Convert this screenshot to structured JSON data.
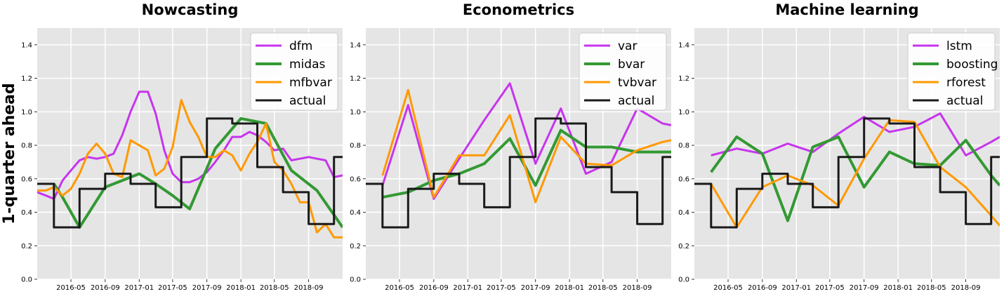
{
  "chart_data": [
    {
      "type": "line",
      "title": "Nowcasting",
      "ylabel": "1-quarter ahead",
      "xlabel": "",
      "ylim": [
        0.0,
        1.5
      ],
      "xlim": [
        "2016-01-01",
        "2019-01-01"
      ],
      "yticks": [
        "0.0",
        "0.2",
        "0.4",
        "0.6",
        "0.8",
        "1.0",
        "1.2",
        "1.4"
      ],
      "xticks": [
        "2016-05",
        "2016-09",
        "2017-01",
        "2017-05",
        "2017-09",
        "2018-01",
        "2018-05",
        "2018-09"
      ],
      "grid": true,
      "legend_position": "upper right",
      "series": [
        {
          "name": "dfm",
          "color": "#c734ee",
          "x": [
            "2016-01-01",
            "2016-02-01",
            "2016-03-01",
            "2016-04-01",
            "2016-05-01",
            "2016-06-01",
            "2016-07-01",
            "2016-08-01",
            "2016-09-01",
            "2016-10-01",
            "2016-11-01",
            "2016-12-01",
            "2017-01-01",
            "2017-02-01",
            "2017-03-01",
            "2017-04-01",
            "2017-05-01",
            "2017-06-01",
            "2017-07-01",
            "2017-08-01",
            "2017-09-01",
            "2017-10-01",
            "2017-11-01",
            "2017-12-01",
            "2018-01-01",
            "2018-02-01",
            "2018-03-01",
            "2018-04-01",
            "2018-05-01",
            "2018-06-01",
            "2018-07-01",
            "2018-08-01",
            "2018-09-01",
            "2018-10-01",
            "2018-11-01",
            "2018-12-01",
            "2019-01-01"
          ],
          "values": [
            0.52,
            0.5,
            0.48,
            0.59,
            0.65,
            0.71,
            0.73,
            0.72,
            0.73,
            0.75,
            0.86,
            1.0,
            1.12,
            1.12,
            0.99,
            0.77,
            0.63,
            0.58,
            0.58,
            0.6,
            0.64,
            0.7,
            0.77,
            0.85,
            0.85,
            0.88,
            0.86,
            0.82,
            0.77,
            0.78,
            0.71,
            0.72,
            0.73,
            0.72,
            0.71,
            0.61,
            0.62
          ]
        },
        {
          "name": "midas",
          "color": "#339933",
          "x": [
            "2016-03-01",
            "2016-04-01",
            "2016-06-01",
            "2016-09-01",
            "2016-11-01",
            "2017-01-01",
            "2017-03-01",
            "2017-05-01",
            "2017-07-01",
            "2017-10-01",
            "2018-01-01",
            "2018-04-01",
            "2018-07-01",
            "2018-10-01",
            "2019-01-01"
          ],
          "values": [
            0.57,
            0.49,
            0.31,
            0.55,
            0.59,
            0.63,
            0.57,
            0.5,
            0.42,
            0.78,
            0.96,
            0.93,
            0.65,
            0.53,
            0.31
          ]
        },
        {
          "name": "mfbvar",
          "color": "#ff9900",
          "x": [
            "2016-01-01",
            "2016-02-01",
            "2016-03-01",
            "2016-04-01",
            "2016-05-01",
            "2016-06-01",
            "2016-07-01",
            "2016-08-01",
            "2016-09-01",
            "2016-10-01",
            "2016-11-01",
            "2016-12-01",
            "2017-01-01",
            "2017-02-01",
            "2017-03-01",
            "2017-04-01",
            "2017-05-01",
            "2017-06-01",
            "2017-07-01",
            "2017-08-01",
            "2017-09-01",
            "2017-10-01",
            "2017-11-01",
            "2017-12-01",
            "2018-01-01",
            "2018-02-01",
            "2018-03-01",
            "2018-04-01",
            "2018-05-01",
            "2018-06-01",
            "2018-07-01",
            "2018-08-01",
            "2018-09-01",
            "2018-10-01",
            "2018-11-01",
            "2018-12-01",
            "2019-01-01"
          ],
          "values": [
            0.53,
            0.53,
            0.55,
            0.5,
            0.54,
            0.63,
            0.75,
            0.81,
            0.75,
            0.63,
            0.61,
            0.83,
            0.8,
            0.77,
            0.62,
            0.66,
            0.79,
            1.07,
            0.94,
            0.85,
            0.73,
            0.73,
            0.77,
            0.74,
            0.65,
            0.75,
            0.82,
            0.93,
            0.7,
            0.65,
            0.57,
            0.46,
            0.46,
            0.28,
            0.33,
            0.25,
            0.25
          ]
        },
        {
          "name": "actual",
          "color": "#1a1a1a",
          "x": [
            "2016-01-01",
            "2016-03-01",
            "2016-03-01",
            "2016-06-01",
            "2016-06-01",
            "2016-09-01",
            "2016-09-01",
            "2016-12-01",
            "2016-12-01",
            "2017-03-01",
            "2017-03-01",
            "2017-06-01",
            "2017-06-01",
            "2017-09-01",
            "2017-09-01",
            "2017-12-01",
            "2017-12-01",
            "2018-03-01",
            "2018-03-01",
            "2018-06-01",
            "2018-06-01",
            "2018-09-01",
            "2018-09-01",
            "2018-12-01",
            "2018-12-01",
            "2019-01-01"
          ],
          "values": [
            0.57,
            0.57,
            0.31,
            0.31,
            0.54,
            0.54,
            0.63,
            0.63,
            0.57,
            0.57,
            0.43,
            0.43,
            0.73,
            0.73,
            0.96,
            0.96,
            0.93,
            0.93,
            0.67,
            0.67,
            0.52,
            0.52,
            0.33,
            0.33,
            0.73,
            0.73
          ]
        }
      ]
    },
    {
      "type": "line",
      "title": "Econometrics",
      "ylabel": "",
      "xlabel": "",
      "ylim": [
        0.0,
        1.5
      ],
      "xlim": [
        "2016-01-01",
        "2019-01-01"
      ],
      "yticks": [
        "0.0",
        "0.2",
        "0.4",
        "0.6",
        "0.8",
        "1.0",
        "1.2",
        "1.4"
      ],
      "xticks": [
        "2016-05",
        "2016-09",
        "2017-01",
        "2017-05",
        "2017-09",
        "2018-01",
        "2018-05",
        "2018-09"
      ],
      "grid": true,
      "legend_position": "upper right",
      "series": [
        {
          "name": "var",
          "color": "#c734ee",
          "x": [
            "2016-03-01",
            "2016-06-01",
            "2016-09-01",
            "2016-12-01",
            "2017-03-01",
            "2017-06-01",
            "2017-09-01",
            "2017-12-01",
            "2018-03-01",
            "2018-06-01",
            "2018-09-01",
            "2018-12-01",
            "2019-01-01"
          ],
          "values": [
            0.56,
            1.04,
            0.48,
            0.72,
            0.95,
            1.17,
            0.69,
            1.02,
            0.63,
            0.7,
            1.02,
            0.93,
            0.92
          ]
        },
        {
          "name": "bvar",
          "color": "#339933",
          "x": [
            "2016-03-01",
            "2016-06-01",
            "2016-09-01",
            "2016-12-01",
            "2017-03-01",
            "2017-06-01",
            "2017-09-01",
            "2017-12-01",
            "2018-03-01",
            "2018-06-01",
            "2018-09-01",
            "2018-12-01",
            "2019-01-01"
          ],
          "values": [
            0.49,
            0.52,
            0.59,
            0.63,
            0.69,
            0.84,
            0.56,
            0.89,
            0.79,
            0.79,
            0.76,
            0.76,
            0.76
          ]
        },
        {
          "name": "tvbvar",
          "color": "#ff9900",
          "x": [
            "2016-03-01",
            "2016-06-01",
            "2016-09-01",
            "2016-12-01",
            "2017-03-01",
            "2017-06-01",
            "2017-09-01",
            "2017-12-01",
            "2018-03-01",
            "2018-06-01",
            "2018-09-01",
            "2018-12-01",
            "2019-01-01"
          ],
          "values": [
            0.62,
            1.13,
            0.49,
            0.74,
            0.74,
            0.98,
            0.46,
            0.85,
            0.69,
            0.68,
            0.77,
            0.82,
            0.83
          ]
        },
        {
          "name": "actual",
          "color": "#1a1a1a",
          "x": [
            "2016-01-01",
            "2016-03-01",
            "2016-03-01",
            "2016-06-01",
            "2016-06-01",
            "2016-09-01",
            "2016-09-01",
            "2016-12-01",
            "2016-12-01",
            "2017-03-01",
            "2017-03-01",
            "2017-06-01",
            "2017-06-01",
            "2017-09-01",
            "2017-09-01",
            "2017-12-01",
            "2017-12-01",
            "2018-03-01",
            "2018-03-01",
            "2018-06-01",
            "2018-06-01",
            "2018-09-01",
            "2018-09-01",
            "2018-12-01",
            "2018-12-01",
            "2019-01-01"
          ],
          "values": [
            0.57,
            0.57,
            0.31,
            0.31,
            0.54,
            0.54,
            0.63,
            0.63,
            0.57,
            0.57,
            0.43,
            0.43,
            0.73,
            0.73,
            0.96,
            0.96,
            0.93,
            0.93,
            0.67,
            0.67,
            0.52,
            0.52,
            0.33,
            0.33,
            0.73,
            0.73
          ]
        }
      ]
    },
    {
      "type": "line",
      "title": "Machine learning",
      "ylabel": "",
      "xlabel": "",
      "ylim": [
        0.0,
        1.5
      ],
      "xlim": [
        "2016-01-01",
        "2019-01-01"
      ],
      "yticks": [
        "0.0",
        "0.2",
        "0.4",
        "0.6",
        "0.8",
        "1.0",
        "1.2",
        "1.4"
      ],
      "xticks": [
        "2016-05",
        "2016-09",
        "2017-01",
        "2017-05",
        "2017-09",
        "2018-01",
        "2018-05",
        "2018-09"
      ],
      "grid": true,
      "legend_position": "upper right",
      "series": [
        {
          "name": "lstm",
          "color": "#c734ee",
          "x": [
            "2016-03-01",
            "2016-06-01",
            "2016-09-01",
            "2016-12-01",
            "2017-03-01",
            "2017-06-01",
            "2017-09-01",
            "2017-12-01",
            "2018-03-01",
            "2018-06-01",
            "2018-09-01",
            "2018-12-01",
            "2019-01-01"
          ],
          "values": [
            0.74,
            0.78,
            0.75,
            0.81,
            0.76,
            0.87,
            0.97,
            0.88,
            0.91,
            0.99,
            0.74,
            0.82,
            0.85
          ]
        },
        {
          "name": "boosting",
          "color": "#339933",
          "x": [
            "2016-03-01",
            "2016-06-01",
            "2016-09-01",
            "2016-12-01",
            "2017-03-01",
            "2017-06-01",
            "2017-09-01",
            "2017-12-01",
            "2018-03-01",
            "2018-06-01",
            "2018-09-01",
            "2018-12-01",
            "2019-01-01"
          ],
          "values": [
            0.64,
            0.85,
            0.75,
            0.35,
            0.79,
            0.85,
            0.55,
            0.76,
            0.69,
            0.68,
            0.83,
            0.62,
            0.56
          ]
        },
        {
          "name": "rforest",
          "color": "#ff9900",
          "x": [
            "2016-03-01",
            "2016-06-01",
            "2016-09-01",
            "2016-12-01",
            "2017-03-01",
            "2017-06-01",
            "2017-09-01",
            "2017-12-01",
            "2018-03-01",
            "2018-06-01",
            "2018-09-01",
            "2018-12-01",
            "2019-01-01"
          ],
          "values": [
            0.57,
            0.31,
            0.55,
            0.62,
            0.56,
            0.44,
            0.72,
            0.95,
            0.94,
            0.67,
            0.55,
            0.38,
            0.32
          ]
        },
        {
          "name": "actual",
          "color": "#1a1a1a",
          "x": [
            "2016-01-01",
            "2016-03-01",
            "2016-03-01",
            "2016-06-01",
            "2016-06-01",
            "2016-09-01",
            "2016-09-01",
            "2016-12-01",
            "2016-12-01",
            "2017-03-01",
            "2017-03-01",
            "2017-06-01",
            "2017-06-01",
            "2017-09-01",
            "2017-09-01",
            "2017-12-01",
            "2017-12-01",
            "2018-03-01",
            "2018-03-01",
            "2018-06-01",
            "2018-06-01",
            "2018-09-01",
            "2018-09-01",
            "2018-12-01",
            "2018-12-01",
            "2019-01-01"
          ],
          "values": [
            0.57,
            0.57,
            0.31,
            0.31,
            0.54,
            0.54,
            0.63,
            0.63,
            0.57,
            0.57,
            0.43,
            0.43,
            0.73,
            0.73,
            0.96,
            0.96,
            0.93,
            0.93,
            0.67,
            0.67,
            0.52,
            0.52,
            0.33,
            0.33,
            0.73,
            0.73
          ]
        }
      ]
    }
  ]
}
